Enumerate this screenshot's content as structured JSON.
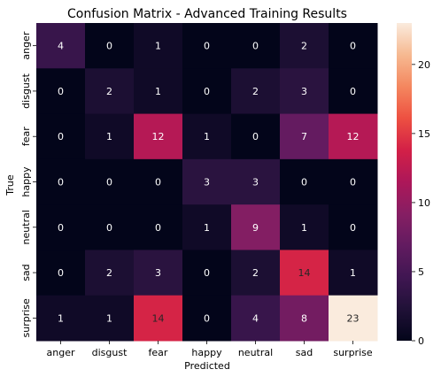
{
  "chart_data": {
    "type": "heatmap",
    "title": "Confusion Matrix - Advanced Training Results",
    "xlabel": "Predicted",
    "ylabel": "True",
    "x_categories": [
      "anger",
      "disgust",
      "fear",
      "happy",
      "neutral",
      "sad",
      "surprise"
    ],
    "y_categories": [
      "anger",
      "disgust",
      "fear",
      "happy",
      "neutral",
      "sad",
      "surprise"
    ],
    "values": [
      [
        4,
        0,
        1,
        0,
        0,
        2,
        0
      ],
      [
        0,
        2,
        1,
        0,
        2,
        3,
        0
      ],
      [
        0,
        1,
        12,
        1,
        0,
        7,
        12
      ],
      [
        0,
        0,
        0,
        3,
        3,
        0,
        0
      ],
      [
        0,
        0,
        0,
        1,
        9,
        1,
        0
      ],
      [
        0,
        2,
        3,
        0,
        2,
        14,
        1
      ],
      [
        1,
        1,
        14,
        0,
        4,
        8,
        23
      ]
    ],
    "colorbar": {
      "min": 0,
      "max": 23,
      "ticks": [
        0,
        5,
        10,
        15,
        20
      ]
    },
    "colormap": "rocket"
  }
}
